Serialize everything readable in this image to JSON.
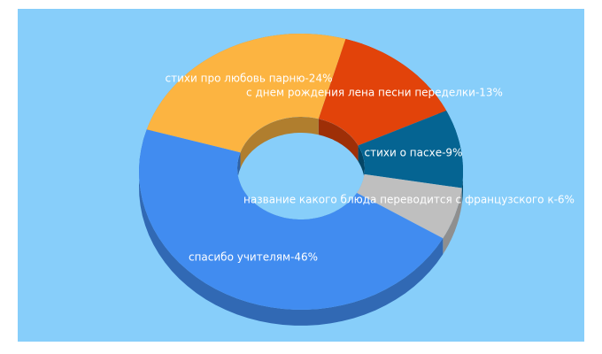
{
  "chart_data": {
    "type": "pie",
    "values": [
      13,
      9,
      6,
      46,
      24
    ],
    "value_labels": [
      "с днем рождения лена песни переделки-13%",
      "стихи о пасхе-9%",
      "название какого блюда переводится с французского к-6%",
      "спасибо учителям-46%",
      "стихи про любовь парню-24%"
    ],
    "colors": [
      "#e2430a",
      "#056492",
      "#bfbfbf",
      "#418cf0",
      "#fcb441"
    ]
  }
}
